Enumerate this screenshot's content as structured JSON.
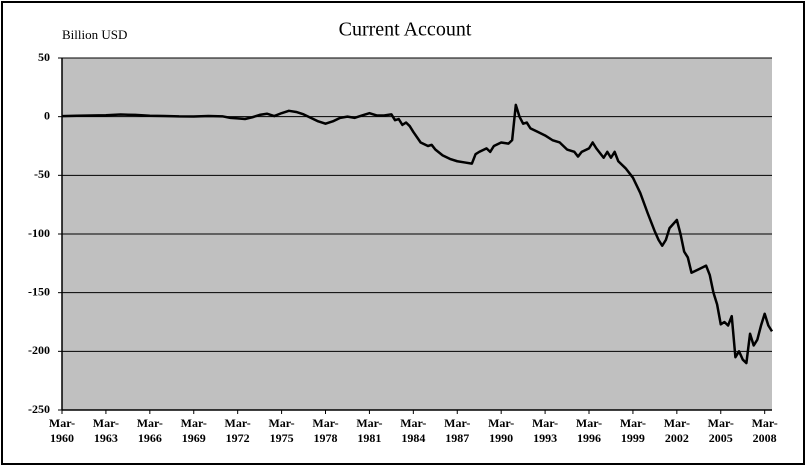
{
  "chart_data": {
    "type": "line",
    "title": "Current Account",
    "y_label": "Billion USD",
    "xlim": [
      1960,
      2008.5
    ],
    "xticks": [
      {
        "value": 1960,
        "label": "Mar-1960"
      },
      {
        "value": 1963,
        "label": "Mar-1963"
      },
      {
        "value": 1966,
        "label": "Mar-1966"
      },
      {
        "value": 1969,
        "label": "Mar-1969"
      },
      {
        "value": 1972,
        "label": "Mar-1972"
      },
      {
        "value": 1975,
        "label": "Mar-1975"
      },
      {
        "value": 1978,
        "label": "Mar-1978"
      },
      {
        "value": 1981,
        "label": "Mar-1981"
      },
      {
        "value": 1984,
        "label": "Mar-1984"
      },
      {
        "value": 1987,
        "label": "Mar-1987"
      },
      {
        "value": 1990,
        "label": "Mar-1990"
      },
      {
        "value": 1993,
        "label": "Mar-1993"
      },
      {
        "value": 1996,
        "label": "Mar-1996"
      },
      {
        "value": 1999,
        "label": "Mar-1999"
      },
      {
        "value": 2002,
        "label": "Mar-2002"
      },
      {
        "value": 2005,
        "label": "Mar-2005"
      },
      {
        "value": 2008,
        "label": "Mar-2008"
      }
    ],
    "ylim": [
      -250,
      50
    ],
    "yticks": [
      50,
      0,
      -50,
      -100,
      -150,
      -200,
      -250
    ],
    "grid": true,
    "background": "#c0c0c0",
    "series": [
      {
        "name": "Current Account",
        "color": "#000000",
        "x": [
          1960,
          1961,
          1962,
          1963,
          1964,
          1965,
          1966,
          1967,
          1968,
          1969,
          1970,
          1971,
          1971.5,
          1972,
          1972.5,
          1973,
          1973.5,
          1974,
          1974.5,
          1975,
          1975.5,
          1976,
          1976.5,
          1977,
          1977.5,
          1978,
          1978.5,
          1979,
          1979.5,
          1980,
          1980.5,
          1981,
          1981.5,
          1982,
          1982.5,
          1982.75,
          1983,
          1983.25,
          1983.5,
          1983.75,
          1984,
          1984.5,
          1985,
          1985.25,
          1985.5,
          1986,
          1986.5,
          1987,
          1987.5,
          1988,
          1988.25,
          1988.5,
          1989,
          1989.25,
          1989.5,
          1990,
          1990.5,
          1990.75,
          1991,
          1991.25,
          1991.5,
          1991.75,
          1992,
          1992.5,
          1993,
          1993.5,
          1994,
          1994.5,
          1995,
          1995.25,
          1995.5,
          1996,
          1996.25,
          1996.5,
          1997,
          1997.25,
          1997.5,
          1997.75,
          1998,
          1998.5,
          1999,
          1999.5,
          2000,
          2000.5,
          2000.75,
          2001,
          2001.25,
          2001.5,
          2002,
          2002.25,
          2002.5,
          2002.75,
          2003,
          2003.5,
          2004,
          2004.25,
          2004.5,
          2004.75,
          2005,
          2005.25,
          2005.5,
          2005.75,
          2006,
          2006.25,
          2006.5,
          2006.75,
          2007,
          2007.25,
          2007.5,
          2007.75,
          2008,
          2008.25,
          2008.5
        ],
        "values": [
          0.5,
          0.8,
          1,
          1.2,
          1.8,
          1.5,
          0.8,
          0.6,
          0.2,
          0.1,
          0.6,
          0.2,
          -1,
          -1.5,
          -2,
          -0.5,
          1.5,
          2.5,
          0.5,
          3,
          5,
          4,
          2,
          -1,
          -4,
          -6,
          -4,
          -1,
          0,
          -1,
          1,
          3,
          1,
          1,
          2,
          -3,
          -2,
          -7,
          -5,
          -8,
          -13,
          -22,
          -25,
          -24,
          -28,
          -33,
          -36,
          -38,
          -39,
          -40,
          -32,
          -30,
          -27,
          -30,
          -25,
          -22,
          -23,
          -20,
          10,
          0,
          -6,
          -5,
          -10,
          -13,
          -16,
          -20,
          -22,
          -28,
          -30,
          -34,
          -30,
          -27,
          -22,
          -27,
          -35,
          -30,
          -35,
          -30,
          -38,
          -44,
          -52,
          -65,
          -82,
          -98,
          -105,
          -110,
          -105,
          -95,
          -88,
          -100,
          -115,
          -120,
          -133,
          -130,
          -127,
          -135,
          -150,
          -160,
          -177,
          -175,
          -178,
          -170,
          -205,
          -200,
          -207,
          -210,
          -185,
          -195,
          -190,
          -178,
          -168,
          -178,
          -183
        ]
      }
    ]
  }
}
